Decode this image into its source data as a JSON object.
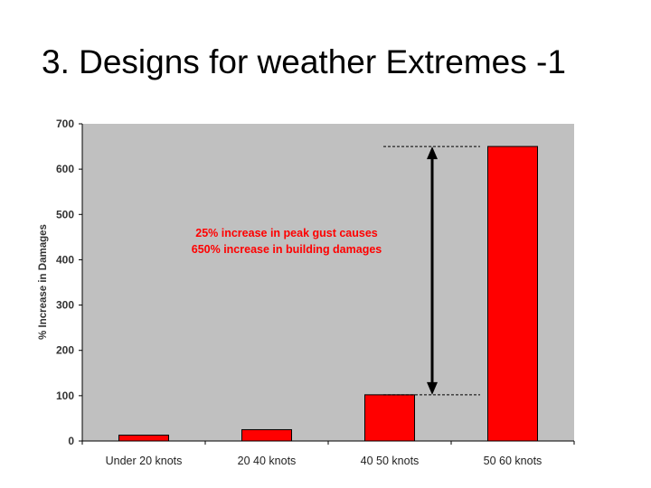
{
  "slide": {
    "title": "3. Designs for weather Extremes -1"
  },
  "chart_data": {
    "type": "bar",
    "categories": [
      "Under 20 knots",
      "20 40 knots",
      "40 50 knots",
      "50 60 knots"
    ],
    "values": [
      13,
      25,
      102,
      650
    ],
    "ylabel": "% Increase in Damages",
    "xlabel": "",
    "ylim": [
      0,
      700
    ],
    "yticks": [
      0,
      100,
      200,
      300,
      400,
      500,
      600,
      700
    ],
    "grid": false,
    "colors": {
      "plot_background": "#c0c0c0",
      "bar": "#ff0000",
      "annotation_text": "#ff0000"
    },
    "annotation": {
      "lines": [
        "25% increase in peak gust causes",
        "650% increase in building damages"
      ]
    },
    "range_arrow": {
      "from": 102,
      "to": 650
    }
  }
}
